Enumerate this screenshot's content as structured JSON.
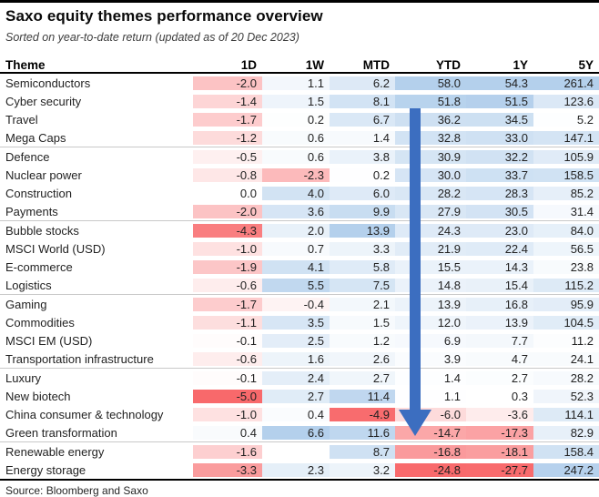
{
  "page": {
    "title": "Saxo equity themes performance overview",
    "subtitle": "Sorted on year-to-date return (updated as of 20 Dec 2023)",
    "source": "Source: Bloomberg and Saxo"
  },
  "chart_data": {
    "type": "heatmap",
    "title": "Saxo equity themes performance overview",
    "subtitle": "Sorted on year-to-date return (updated as of 20 Dec 2023)",
    "row_header_label": "Theme",
    "columns": [
      "1D",
      "1W",
      "MTD",
      "YTD",
      "1Y",
      "5Y"
    ],
    "rows": [
      {
        "theme": "Semiconductors",
        "values": [
          -2.0,
          1.1,
          6.2,
          58.0,
          54.3,
          261.4
        ]
      },
      {
        "theme": "Cyber security",
        "values": [
          -1.4,
          1.5,
          8.1,
          51.8,
          51.5,
          123.6
        ]
      },
      {
        "theme": "Travel",
        "values": [
          -1.7,
          0.2,
          6.7,
          36.2,
          34.5,
          5.2
        ]
      },
      {
        "theme": "Mega Caps",
        "values": [
          -1.2,
          0.6,
          1.4,
          32.8,
          33.0,
          147.1
        ]
      },
      {
        "theme": "Defence",
        "values": [
          -0.5,
          0.6,
          3.8,
          30.9,
          32.2,
          105.9
        ]
      },
      {
        "theme": "Nuclear power",
        "values": [
          -0.8,
          -2.3,
          0.2,
          30.0,
          33.7,
          158.5
        ]
      },
      {
        "theme": "Construction",
        "values": [
          0.0,
          4.0,
          6.0,
          28.2,
          28.3,
          85.2
        ]
      },
      {
        "theme": "Payments",
        "values": [
          -2.0,
          3.6,
          9.9,
          27.9,
          30.5,
          31.4
        ]
      },
      {
        "theme": "Bubble stocks",
        "values": [
          -4.3,
          2.0,
          13.9,
          24.3,
          23.0,
          84.0
        ]
      },
      {
        "theme": "MSCI World (USD)",
        "values": [
          -1.0,
          0.7,
          3.3,
          21.9,
          22.4,
          56.5
        ]
      },
      {
        "theme": "E-commerce",
        "values": [
          -1.9,
          4.1,
          5.8,
          15.5,
          14.3,
          23.8
        ]
      },
      {
        "theme": "Logistics",
        "values": [
          -0.6,
          5.5,
          7.5,
          14.8,
          15.4,
          115.2
        ]
      },
      {
        "theme": "Gaming",
        "values": [
          -1.7,
          -0.4,
          2.1,
          13.9,
          16.8,
          95.9
        ]
      },
      {
        "theme": "Commodities",
        "values": [
          -1.1,
          3.5,
          1.5,
          12.0,
          13.9,
          104.5
        ]
      },
      {
        "theme": "MSCI EM (USD)",
        "values": [
          -0.1,
          2.5,
          1.2,
          6.9,
          7.7,
          11.2
        ]
      },
      {
        "theme": "Transportation infrastructure",
        "values": [
          -0.6,
          1.6,
          2.6,
          3.9,
          4.7,
          24.1
        ]
      },
      {
        "theme": "Luxury",
        "values": [
          -0.1,
          2.4,
          2.7,
          1.4,
          2.7,
          28.2
        ]
      },
      {
        "theme": "New biotech",
        "values": [
          -5.0,
          2.7,
          11.4,
          1.1,
          0.3,
          52.3
        ]
      },
      {
        "theme": "China consumer & technology",
        "values": [
          -1.0,
          0.4,
          -4.9,
          -6.0,
          -3.6,
          114.1
        ]
      },
      {
        "theme": "Green transformation",
        "values": [
          0.4,
          6.6,
          11.6,
          -14.7,
          -17.3,
          82.9
        ]
      },
      {
        "theme": "Renewable energy",
        "values": [
          -1.6,
          null,
          8.7,
          -16.8,
          -18.1,
          158.4
        ]
      },
      {
        "theme": "Energy storage",
        "values": [
          -3.3,
          2.3,
          3.2,
          -24.8,
          -27.7,
          247.2
        ]
      }
    ],
    "annotations": [
      "Blue downward arrow over YTD column indicating descending sort by year-to-date return"
    ],
    "legend_position": "none",
    "grid": "separator line after every 4th row"
  },
  "heatmap": {
    "negative_color": "#f8696b",
    "positive_color": "#b4d0ec",
    "neutral_color": "#ffffff",
    "column_caps": [
      {
        "positive": 5,
        "negative": 5
      },
      {
        "positive": 6.6,
        "negative": 5
      },
      {
        "positive": 13.5,
        "negative": 5
      },
      {
        "positive": 55,
        "negative": 25
      },
      {
        "positive": 52,
        "negative": 28
      },
      {
        "positive": 255,
        "negative": 30
      }
    ]
  },
  "arrow": {
    "color": "#3c6ec0"
  }
}
